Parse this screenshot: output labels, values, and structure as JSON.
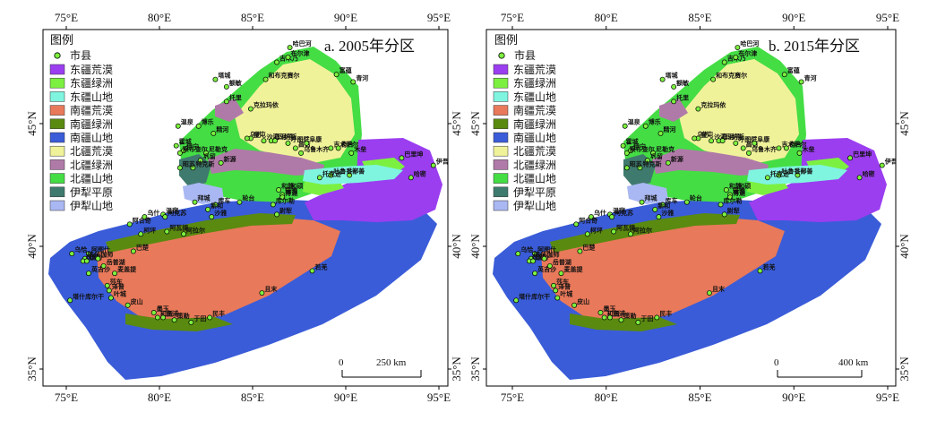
{
  "panels": [
    {
      "title": "a. 2005年分区",
      "legend": {
        "title": "图例",
        "city_label": "市县",
        "items": [
          {
            "label": "东疆荒漠",
            "color": "#9b3ef0"
          },
          {
            "label": "东疆绿洲",
            "color": "#7cf040"
          },
          {
            "label": "东疆山地",
            "color": "#7ff5e0"
          },
          {
            "label": "南疆荒漠",
            "color": "#e8795a"
          },
          {
            "label": "南疆绿洲",
            "color": "#5a8a10"
          },
          {
            "label": "南疆山地",
            "color": "#3a5cd8"
          },
          {
            "label": "北疆荒漠",
            "color": "#f0f29a"
          },
          {
            "label": "北疆绿洲",
            "color": "#b07aa8"
          },
          {
            "label": "北疆山地",
            "color": "#44dd44"
          },
          {
            "label": "伊犁平原",
            "color": "#3f7a6e"
          },
          {
            "label": "伊犁山地",
            "color": "#a9b8f2"
          }
        ]
      },
      "scalebar": {
        "start": "0",
        "end": "250 km"
      }
    },
    {
      "title": "b. 2015年分区",
      "legend": {
        "title": "图例",
        "city_label": "市县",
        "items": [
          {
            "label": "东疆荒漠",
            "color": "#9b3ef0"
          },
          {
            "label": "东疆绿洲",
            "color": "#7cf040"
          },
          {
            "label": "东疆山地",
            "color": "#7ff5e0"
          },
          {
            "label": "南疆荒漠",
            "color": "#e8795a"
          },
          {
            "label": "南疆绿洲",
            "color": "#5a8a10"
          },
          {
            "label": "南疆山地",
            "color": "#3a5cd8"
          },
          {
            "label": "北疆荒漠",
            "color": "#f0f29a"
          },
          {
            "label": "北疆绿洲",
            "color": "#b07aa8"
          },
          {
            "label": "北疆山地",
            "color": "#44dd44"
          },
          {
            "label": "伊犁平原",
            "color": "#3f7a6e"
          },
          {
            "label": "伊犁山地",
            "color": "#a9b8f2"
          }
        ]
      },
      "scalebar": {
        "start": "0",
        "end": "400 km"
      }
    }
  ],
  "axes": {
    "top_ticks": [
      "75°E",
      "80°E",
      "85°E",
      "90°E",
      "95°E"
    ],
    "bottom_ticks": [
      "75°E",
      "80°E",
      "85°E",
      "90°E",
      "95°E"
    ],
    "left_ticks": [
      "45°N",
      "40°N",
      "35°N"
    ],
    "right_ticks": [
      "45°N",
      "40°N",
      "35°N"
    ],
    "lon_values": [
      75,
      80,
      85,
      90,
      95
    ],
    "lat_values": [
      45,
      40,
      35
    ]
  },
  "cities": [
    {
      "name": "哈巴河",
      "lon": 87.0,
      "lat": 48.1
    },
    {
      "name": "吉木乃",
      "lon": 86.3,
      "lat": 47.5
    },
    {
      "name": "布尔津",
      "lon": 86.9,
      "lat": 47.7
    },
    {
      "name": "和布克赛尔",
      "lon": 85.7,
      "lat": 46.8
    },
    {
      "name": "富蕴",
      "lon": 89.5,
      "lat": 47.0
    },
    {
      "name": "青河",
      "lon": 90.4,
      "lat": 46.7
    },
    {
      "name": "塔城",
      "lon": 83.0,
      "lat": 46.8
    },
    {
      "name": "额敏",
      "lon": 83.6,
      "lat": 46.5
    },
    {
      "name": "托里",
      "lon": 83.6,
      "lat": 45.9
    },
    {
      "name": "克拉玛依",
      "lon": 84.9,
      "lat": 45.6
    },
    {
      "name": "温泉",
      "lon": 81.0,
      "lat": 44.9
    },
    {
      "name": "博乐",
      "lon": 82.1,
      "lat": 44.9
    },
    {
      "name": "精河",
      "lon": 82.9,
      "lat": 44.6
    },
    {
      "name": "奎屯",
      "lon": 84.9,
      "lat": 44.4
    },
    {
      "name": "沙湾",
      "lon": 85.6,
      "lat": 44.3
    },
    {
      "name": "乌苏",
      "lon": 84.7,
      "lat": 44.4
    },
    {
      "name": "石河子",
      "lon": 86.0,
      "lat": 44.3
    },
    {
      "name": "玛纳斯",
      "lon": 86.2,
      "lat": 44.3
    },
    {
      "name": "呼图壁",
      "lon": 86.9,
      "lat": 44.2
    },
    {
      "name": "昌吉",
      "lon": 87.3,
      "lat": 44.0
    },
    {
      "name": "阜康",
      "lon": 87.9,
      "lat": 44.2
    },
    {
      "name": "吉木萨尔",
      "lon": 89.2,
      "lat": 44.0
    },
    {
      "name": "奇台",
      "lon": 89.6,
      "lat": 44.0
    },
    {
      "name": "木垒",
      "lon": 90.3,
      "lat": 43.8
    },
    {
      "name": "乌鲁木齐",
      "lon": 87.6,
      "lat": 43.8
    },
    {
      "name": "霍城",
      "lon": 80.9,
      "lat": 44.1
    },
    {
      "name": "伊宁",
      "lon": 81.3,
      "lat": 43.9
    },
    {
      "name": "察布查尔",
      "lon": 81.1,
      "lat": 43.8
    },
    {
      "name": "尼勒克",
      "lon": 82.5,
      "lat": 43.8
    },
    {
      "name": "巩留",
      "lon": 82.2,
      "lat": 43.5
    },
    {
      "name": "新源",
      "lon": 83.3,
      "lat": 43.4
    },
    {
      "name": "特克斯",
      "lon": 81.8,
      "lat": 43.2
    },
    {
      "name": "昭苏",
      "lon": 81.1,
      "lat": 43.2
    },
    {
      "name": "巴里坤",
      "lon": 93.0,
      "lat": 43.6
    },
    {
      "name": "伊吾",
      "lon": 94.7,
      "lat": 43.3
    },
    {
      "name": "哈密",
      "lon": 93.5,
      "lat": 42.8
    },
    {
      "name": "鄯善",
      "lon": 90.2,
      "lat": 42.9
    },
    {
      "name": "吐鲁番",
      "lon": 89.2,
      "lat": 42.9
    },
    {
      "name": "托克逊",
      "lon": 88.6,
      "lat": 42.8
    },
    {
      "name": "和静",
      "lon": 86.4,
      "lat": 42.3
    },
    {
      "name": "和硕",
      "lon": 86.9,
      "lat": 42.3
    },
    {
      "name": "焉耆",
      "lon": 86.6,
      "lat": 42.1
    },
    {
      "name": "博湖",
      "lon": 86.6,
      "lat": 42.0
    },
    {
      "name": "库尔勒",
      "lon": 86.1,
      "lat": 41.7
    },
    {
      "name": "尉犁",
      "lon": 86.3,
      "lat": 41.3
    },
    {
      "name": "轮台",
      "lon": 84.3,
      "lat": 41.8
    },
    {
      "name": "库车",
      "lon": 83.0,
      "lat": 41.7
    },
    {
      "name": "新和",
      "lon": 82.6,
      "lat": 41.5
    },
    {
      "name": "沙雅",
      "lon": 82.8,
      "lat": 41.2
    },
    {
      "name": "拜城",
      "lon": 81.9,
      "lat": 41.8
    },
    {
      "name": "温宿",
      "lon": 80.2,
      "lat": 41.3
    },
    {
      "name": "阿克苏",
      "lon": 80.3,
      "lat": 41.2
    },
    {
      "name": "乌什",
      "lon": 79.2,
      "lat": 41.2
    },
    {
      "name": "阿合奇",
      "lon": 78.4,
      "lat": 40.9
    },
    {
      "name": "柯坪",
      "lon": 79.0,
      "lat": 40.5
    },
    {
      "name": "阿瓦提",
      "lon": 80.4,
      "lat": 40.6
    },
    {
      "name": "阿拉尔",
      "lon": 81.3,
      "lat": 40.5
    },
    {
      "name": "阿图什",
      "lon": 76.2,
      "lat": 39.7
    },
    {
      "name": "喀什",
      "lon": 76.0,
      "lat": 39.5
    },
    {
      "name": "疏附",
      "lon": 75.9,
      "lat": 39.4
    },
    {
      "name": "疏勒",
      "lon": 76.1,
      "lat": 39.4
    },
    {
      "name": "伽师",
      "lon": 76.7,
      "lat": 39.5
    },
    {
      "name": "巴楚",
      "lon": 78.6,
      "lat": 39.8
    },
    {
      "name": "乌恰",
      "lon": 75.3,
      "lat": 39.7
    },
    {
      "name": "英吉沙",
      "lon": 76.2,
      "lat": 38.9
    },
    {
      "name": "岳普湖",
      "lon": 77.0,
      "lat": 39.2
    },
    {
      "name": "麦盖提",
      "lon": 77.6,
      "lat": 38.9
    },
    {
      "name": "莎车",
      "lon": 77.2,
      "lat": 38.4
    },
    {
      "name": "泽普",
      "lon": 77.3,
      "lat": 38.2
    },
    {
      "name": "叶城",
      "lon": 77.4,
      "lat": 37.9
    },
    {
      "name": "塔什库尔干",
      "lon": 75.2,
      "lat": 37.8
    },
    {
      "name": "皮山",
      "lon": 78.3,
      "lat": 37.6
    },
    {
      "name": "墨玉",
      "lon": 79.7,
      "lat": 37.3
    },
    {
      "name": "和田",
      "lon": 79.9,
      "lat": 37.1
    },
    {
      "name": "洛浦",
      "lon": 80.2,
      "lat": 37.1
    },
    {
      "name": "策勒",
      "lon": 80.8,
      "lat": 37.0
    },
    {
      "name": "于田",
      "lon": 81.7,
      "lat": 36.9
    },
    {
      "name": "民丰",
      "lon": 82.7,
      "lat": 37.1
    },
    {
      "name": "且末",
      "lon": 85.5,
      "lat": 38.1
    },
    {
      "name": "若羌",
      "lon": 88.2,
      "lat": 39.0
    }
  ]
}
